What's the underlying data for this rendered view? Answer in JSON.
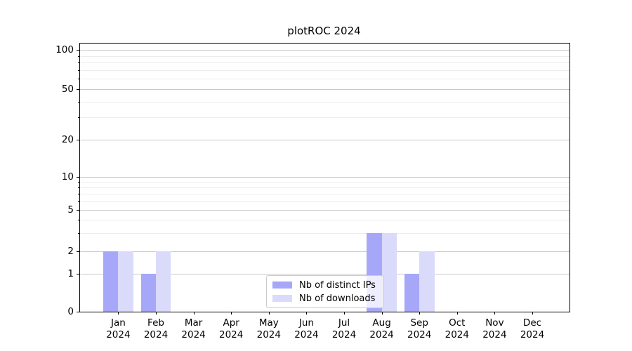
{
  "chart_data": {
    "type": "bar",
    "title": "plotROC 2024",
    "categories": [
      "Jan 2024",
      "Feb 2024",
      "Mar 2024",
      "Apr 2024",
      "May 2024",
      "Jun 2024",
      "Jul 2024",
      "Aug 2024",
      "Sep 2024",
      "Oct 2024",
      "Nov 2024",
      "Dec 2024"
    ],
    "x_tick_months": [
      "Jan",
      "Feb",
      "Mar",
      "Apr",
      "May",
      "Jun",
      "Jul",
      "Aug",
      "Sep",
      "Oct",
      "Nov",
      "Dec"
    ],
    "x_tick_year": "2024",
    "series": [
      {
        "name": "Nb of distinct IPs",
        "color": "#a7a7f9",
        "values": [
          2,
          1,
          0,
          0,
          0,
          0,
          0,
          3,
          1,
          0,
          0,
          0
        ]
      },
      {
        "name": "Nb of downloads",
        "color": "#dadafb",
        "values": [
          2,
          2,
          0,
          0,
          0,
          0,
          0,
          3,
          2,
          0,
          0,
          0
        ]
      }
    ],
    "y_axis": {
      "scale": "log-like",
      "major_ticks": [
        0,
        1,
        2,
        5,
        10,
        20,
        50,
        100
      ],
      "minor_gridlines": [
        3,
        4,
        6,
        7,
        8,
        9,
        30,
        40,
        60,
        70,
        80,
        90
      ],
      "range_top_value": 120
    },
    "xlabel": "",
    "ylabel": "",
    "grid": true,
    "legend": {
      "position": "lower center"
    }
  },
  "colors": {
    "major_grid": "#c9c9c9",
    "minor_grid": "#ececec",
    "spine": "#000000",
    "text": "#000000",
    "legend_border": "#cccccc",
    "background": "#ffffff"
  }
}
